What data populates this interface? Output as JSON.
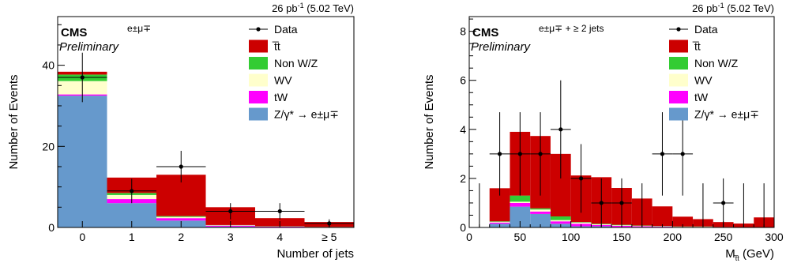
{
  "colors": {
    "ttbar": "#cc0000",
    "nonwz": "#33cc33",
    "wv": "#ffffcc",
    "tw": "#ff00ff",
    "dy": "#6699cc",
    "data": "#000000"
  },
  "chart_data": [
    {
      "type": "bar",
      "stacked": true,
      "lumi": "26 pb",
      "lumi_sup": "-1",
      "energy": "(5.02 TeV)",
      "cms_label": "CMS",
      "preliminary": "Preliminary",
      "channel": "e±μ∓",
      "xlabel": "Number of jets",
      "ylabel": "Number of Events",
      "categories": [
        "0",
        "1",
        "2",
        "3",
        "4",
        "≥ 5"
      ],
      "xlim": [
        -0.5,
        5.5
      ],
      "ylim": [
        0,
        52
      ],
      "yticks": [
        "0",
        "20",
        "40"
      ],
      "legend_position": "top-right",
      "legend": [
        "Data",
        "t̅t",
        "Non W/Z",
        "WV",
        "tW",
        "Z/γ* → e±μ∓"
      ],
      "series": [
        {
          "key": "dy",
          "values": [
            32.5,
            6.0,
            1.7,
            0.2,
            0.1,
            0.05
          ]
        },
        {
          "key": "tw",
          "values": [
            0.3,
            1.0,
            0.6,
            0.25,
            0.1,
            0.05
          ]
        },
        {
          "key": "wv",
          "values": [
            3.3,
            1.0,
            0.3,
            0.1,
            0.05,
            0.02
          ]
        },
        {
          "key": "nonwz",
          "values": [
            1.6,
            0.5,
            0.2,
            0.05,
            0.05,
            0.02
          ]
        },
        {
          "key": "ttbar",
          "values": [
            0.7,
            3.8,
            10.2,
            4.4,
            2.0,
            1.2
          ]
        }
      ],
      "data_points": [
        {
          "x": 0,
          "y": 37,
          "err": 6.1
        },
        {
          "x": 1,
          "y": 9,
          "err": 3.0
        },
        {
          "x": 2,
          "y": 15,
          "err": 3.9
        },
        {
          "x": 3,
          "y": 4,
          "err": 2.0
        },
        {
          "x": 4,
          "y": 4,
          "err": 2.0
        },
        {
          "x": 5,
          "y": 1,
          "err": 1.0
        }
      ]
    },
    {
      "type": "bar",
      "stacked": true,
      "lumi": "26 pb",
      "lumi_sup": "-1",
      "energy": "(5.02 TeV)",
      "cms_label": "CMS",
      "preliminary": "Preliminary",
      "channel": "e±μ∓ + ≥ 2 jets",
      "xlabel": "M",
      "xlabel_sub": "t̅t",
      "xlabel_unit": " (GeV)",
      "ylabel": "Number of Events",
      "bin_edges": [
        0,
        20,
        40,
        60,
        80,
        100,
        120,
        140,
        160,
        180,
        200,
        220,
        240,
        260,
        280,
        300
      ],
      "xlim": [
        0,
        300
      ],
      "ylim": [
        0,
        8.6
      ],
      "xticks": [
        "0",
        "50",
        "100",
        "150",
        "200",
        "250",
        "300"
      ],
      "yticks": [
        "0",
        "2",
        "4",
        "6",
        "8"
      ],
      "legend_position": "top-right",
      "legend": [
        "Data",
        "t̅t",
        "Non W/Z",
        "WV",
        "tW",
        "Z/γ* → e±μ∓"
      ],
      "series": [
        {
          "key": "dy",
          "values": [
            0,
            0.15,
            0.85,
            0.55,
            0.15,
            0.05,
            0.05,
            0.02,
            0.02,
            0.02,
            0,
            0,
            0,
            0,
            0
          ]
        },
        {
          "key": "tw",
          "values": [
            0,
            0.05,
            0.15,
            0.1,
            0.1,
            0.1,
            0.05,
            0.05,
            0.03,
            0.02,
            0.02,
            0.02,
            0.01,
            0.01,
            0.01
          ]
        },
        {
          "key": "wv",
          "values": [
            0,
            0.03,
            0.05,
            0.08,
            0.05,
            0.05,
            0.03,
            0.02,
            0.02,
            0.01,
            0.01,
            0.01,
            0.01,
            0,
            0
          ]
        },
        {
          "key": "nonwz",
          "values": [
            0,
            0.02,
            0.25,
            0.05,
            0.15,
            0.02,
            0.02,
            0.02,
            0.01,
            0.01,
            0.01,
            0.01,
            0,
            0,
            0
          ]
        },
        {
          "key": "ttbar",
          "values": [
            0,
            1.35,
            2.6,
            2.95,
            2.55,
            1.9,
            1.9,
            1.5,
            1.1,
            0.8,
            0.4,
            0.3,
            0.2,
            0.15,
            0.4
          ]
        }
      ],
      "data_points": [
        {
          "x": 30,
          "y": 3,
          "err": 1.7
        },
        {
          "x": 50,
          "y": 3,
          "err": 1.7
        },
        {
          "x": 70,
          "y": 3,
          "err": 1.7
        },
        {
          "x": 90,
          "y": 4,
          "err": 2.0
        },
        {
          "x": 110,
          "y": 2,
          "err": 1.4
        },
        {
          "x": 130,
          "y": 1,
          "err": 1.0
        },
        {
          "x": 150,
          "y": 1,
          "err": 1.0
        },
        {
          "x": 190,
          "y": 3,
          "err": 1.7
        },
        {
          "x": 210,
          "y": 3,
          "err": 1.7
        },
        {
          "x": 250,
          "y": 1,
          "err": 1.0
        }
      ],
      "empty_bin_errors": [
        10,
        170,
        230,
        270,
        290
      ]
    }
  ]
}
